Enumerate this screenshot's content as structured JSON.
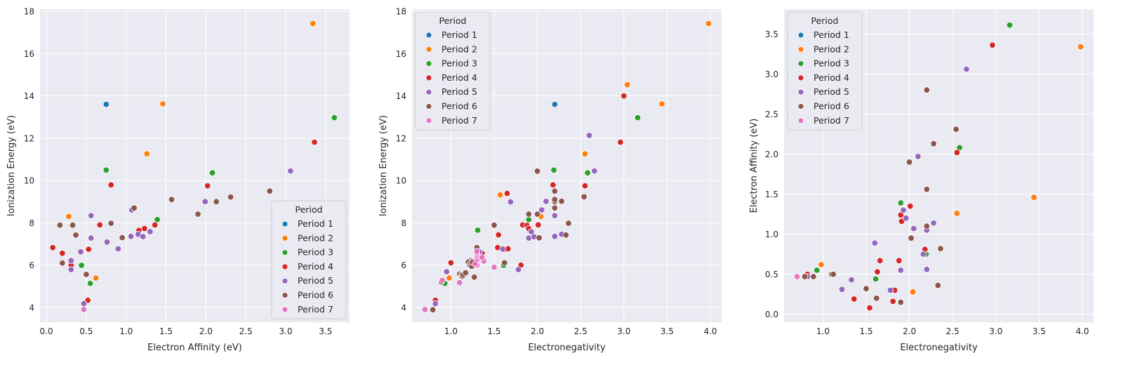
{
  "palette": {
    "Period 1": "#1f77b4",
    "Period 2": "#ff7f0e",
    "Period 3": "#2ca02c",
    "Period 4": "#d62728",
    "Period 5": "#9467bd",
    "Period 6": "#8c564b",
    "Period 7": "#e377c2",
    "plot_background": "#eaeaf2",
    "grid": "#ffffff"
  },
  "chart_data": [
    {
      "type": "scatter",
      "title": "",
      "xlabel": "Electron Affinity (eV)",
      "ylabel": "Ionization Energy (eV)",
      "xlim": [
        -0.08,
        3.8
      ],
      "ylim": [
        3.3,
        18.1
      ],
      "xticks": [
        0.0,
        0.5,
        1.0,
        1.5,
        2.0,
        2.5,
        3.0,
        3.5
      ],
      "xtick_labels": [
        "0.0",
        "0.5",
        "1.0",
        "1.5",
        "2.0",
        "2.5",
        "3.0",
        "3.5"
      ],
      "yticks": [
        4,
        6,
        8,
        10,
        12,
        14,
        16,
        18
      ],
      "ytick_labels": [
        "4",
        "6",
        "8",
        "10",
        "12",
        "14",
        "16",
        "18"
      ],
      "grid": true,
      "legend": {
        "title": "Period",
        "position": "lower-right",
        "entries": [
          "Period 1",
          "Period 2",
          "Period 3",
          "Period 4",
          "Period 5",
          "Period 6",
          "Period 7"
        ]
      },
      "series": [
        {
          "name": "Period 1",
          "points": [
            [
              0.75,
              13.6
            ]
          ]
        },
        {
          "name": "Period 2",
          "points": [
            [
              0.28,
              8.3
            ],
            [
              0.62,
              5.39
            ],
            [
              1.26,
              11.26
            ],
            [
              1.46,
              13.62
            ],
            [
              3.34,
              17.42
            ]
          ]
        },
        {
          "name": "Period 3",
          "points": [
            [
              0.44,
              5.99
            ],
            [
              0.55,
              5.14
            ],
            [
              0.75,
              10.49
            ],
            [
              1.39,
              8.15
            ],
            [
              2.08,
              10.36
            ],
            [
              3.61,
              12.97
            ]
          ]
        },
        {
          "name": "Period 4",
          "points": [
            [
              0.08,
              6.83
            ],
            [
              0.2,
              6.56
            ],
            [
              0.31,
              6.0
            ],
            [
              0.52,
              4.34
            ],
            [
              0.53,
              6.75
            ],
            [
              0.67,
              7.9
            ],
            [
              0.81,
              9.79
            ],
            [
              1.16,
              7.64
            ],
            [
              1.23,
              7.73
            ],
            [
              1.36,
              7.9
            ],
            [
              2.02,
              9.75
            ],
            [
              3.36,
              11.81
            ]
          ]
        },
        {
          "name": "Period 5",
          "points": [
            [
              0.31,
              5.79
            ],
            [
              0.31,
              6.21
            ],
            [
              0.43,
              6.63
            ],
            [
              0.56,
              7.28
            ],
            [
              0.56,
              8.34
            ],
            [
              0.76,
              7.09
            ],
            [
              0.9,
              6.77
            ],
            [
              1.06,
              7.36
            ],
            [
              1.07,
              8.61
            ],
            [
              1.15,
              7.46
            ],
            [
              1.21,
              7.35
            ],
            [
              1.3,
              7.58
            ],
            [
              1.99,
              9.0
            ],
            [
              3.06,
              10.45
            ],
            [
              0.47,
              4.18
            ]
          ]
        },
        {
          "name": "Period 6",
          "points": [
            [
              0.17,
              7.89
            ],
            [
              0.2,
              6.1
            ],
            [
              0.33,
              7.89
            ],
            [
              0.37,
              7.42
            ],
            [
              0.5,
              5.56
            ],
            [
              0.81,
              7.98
            ],
            [
              0.95,
              7.3
            ],
            [
              1.1,
              8.7
            ],
            [
              1.57,
              9.1
            ],
            [
              1.9,
              8.41
            ],
            [
              2.13,
              9.0
            ],
            [
              2.31,
              9.22
            ],
            [
              2.8,
              9.5
            ],
            [
              0.47,
              3.9
            ]
          ]
        },
        {
          "name": "Period 7",
          "points": [
            [
              0.47,
              3.9
            ]
          ]
        }
      ]
    },
    {
      "type": "scatter",
      "title": "",
      "xlabel": "Electronegativity",
      "ylabel": "Ionization Energy (eV)",
      "xlim": [
        0.55,
        4.13
      ],
      "ylim": [
        3.3,
        18.1
      ],
      "xticks": [
        1.0,
        1.5,
        2.0,
        2.5,
        3.0,
        3.5,
        4.0
      ],
      "xtick_labels": [
        "1.0",
        "1.5",
        "2.0",
        "2.5",
        "3.0",
        "3.5",
        "4.0"
      ],
      "yticks": [
        4,
        6,
        8,
        10,
        12,
        14,
        16,
        18
      ],
      "ytick_labels": [
        "4",
        "6",
        "8",
        "10",
        "12",
        "14",
        "16",
        "18"
      ],
      "grid": true,
      "legend": {
        "title": "Period",
        "position": "upper-left",
        "entries": [
          "Period 1",
          "Period 2",
          "Period 3",
          "Period 4",
          "Period 5",
          "Period 6",
          "Period 7"
        ]
      },
      "series": [
        {
          "name": "Period 1",
          "points": [
            [
              2.2,
              13.6
            ]
          ]
        },
        {
          "name": "Period 2",
          "points": [
            [
              0.98,
              5.39
            ],
            [
              1.57,
              9.32
            ],
            [
              2.04,
              8.3
            ],
            [
              2.55,
              11.26
            ],
            [
              3.04,
              14.53
            ],
            [
              3.44,
              13.62
            ],
            [
              3.98,
              17.42
            ]
          ]
        },
        {
          "name": "Period 3",
          "points": [
            [
              0.93,
              5.14
            ],
            [
              1.31,
              7.65
            ],
            [
              1.61,
              5.99
            ],
            [
              1.9,
              8.15
            ],
            [
              2.19,
              10.49
            ],
            [
              2.58,
              10.36
            ],
            [
              3.16,
              12.97
            ]
          ]
        },
        {
          "name": "Period 4",
          "points": [
            [
              0.82,
              4.34
            ],
            [
              1.0,
              6.11
            ],
            [
              1.36,
              6.56
            ],
            [
              1.54,
              6.83
            ],
            [
              1.63,
              6.75
            ],
            [
              1.66,
              6.77
            ],
            [
              1.55,
              7.43
            ],
            [
              1.83,
              7.9
            ],
            [
              1.88,
              7.88
            ],
            [
              1.91,
              7.64
            ],
            [
              1.9,
              7.73
            ],
            [
              1.65,
              9.39
            ],
            [
              1.81,
              6.0
            ],
            [
              2.01,
              7.9
            ],
            [
              2.18,
              9.79
            ],
            [
              2.55,
              9.75
            ],
            [
              2.96,
              11.81
            ],
            [
              3.0,
              14.0
            ]
          ]
        },
        {
          "name": "Period 5",
          "points": [
            [
              0.82,
              4.18
            ],
            [
              0.95,
              5.69
            ],
            [
              1.22,
              6.21
            ],
            [
              1.33,
              6.63
            ],
            [
              1.6,
              6.76
            ],
            [
              1.9,
              7.28
            ],
            [
              2.2,
              7.36
            ],
            [
              2.28,
              7.46
            ],
            [
              2.2,
              8.34
            ],
            [
              1.93,
              7.58
            ],
            [
              1.69,
              8.99
            ],
            [
              1.78,
              5.79
            ],
            [
              1.96,
              7.34
            ],
            [
              2.05,
              8.61
            ],
            [
              2.1,
              9.01
            ],
            [
              2.66,
              10.45
            ],
            [
              2.6,
              12.13
            ]
          ]
        },
        {
          "name": "Period 6",
          "points": [
            [
              0.79,
              3.89
            ],
            [
              0.89,
              5.21
            ],
            [
              1.1,
              5.58
            ],
            [
              1.12,
              5.54
            ],
            [
              1.13,
              5.47
            ],
            [
              1.14,
              5.53
            ],
            [
              1.17,
              5.64
            ],
            [
              1.2,
              6.15
            ],
            [
              1.22,
              6.0
            ],
            [
              1.23,
              6.11
            ],
            [
              1.24,
              5.94
            ],
            [
              1.25,
              6.14
            ],
            [
              1.27,
              5.43
            ],
            [
              1.3,
              6.83
            ],
            [
              1.5,
              7.89
            ],
            [
              2.36,
              7.98
            ],
            [
              1.9,
              8.41
            ],
            [
              2.2,
              9.0
            ],
            [
              2.2,
              8.7
            ],
            [
              2.28,
              9.02
            ],
            [
              2.54,
              9.23
            ],
            [
              2.0,
              10.44
            ],
            [
              1.62,
              6.11
            ],
            [
              2.33,
              7.42
            ],
            [
              2.02,
              7.29
            ],
            [
              2.0,
              8.41
            ],
            [
              2.2,
              9.1
            ],
            [
              2.2,
              9.5
            ]
          ]
        },
        {
          "name": "Period 7",
          "points": [
            [
              0.7,
              3.9
            ],
            [
              0.9,
              5.28
            ],
            [
              1.1,
              5.17
            ],
            [
              1.3,
              6.31
            ],
            [
              1.3,
              6.1
            ],
            [
              1.3,
              6.19
            ],
            [
              1.3,
              6.27
            ],
            [
              1.3,
              6.42
            ],
            [
              1.3,
              6.5
            ],
            [
              1.3,
              6.58
            ],
            [
              1.3,
              6.65
            ],
            [
              1.3,
              6.0
            ],
            [
              1.38,
              6.19
            ],
            [
              1.36,
              6.36
            ],
            [
              1.28,
              6.06
            ],
            [
              1.5,
              5.9
            ]
          ]
        }
      ]
    },
    {
      "type": "scatter",
      "title": "",
      "xlabel": "Electronegativity",
      "ylabel": "Electron Affinity (eV)",
      "xlim": [
        0.55,
        4.13
      ],
      "ylim": [
        -0.1,
        3.81
      ],
      "xticks": [
        1.0,
        1.5,
        2.0,
        2.5,
        3.0,
        3.5,
        4.0
      ],
      "xtick_labels": [
        "1.0",
        "1.5",
        "2.0",
        "2.5",
        "3.0",
        "3.5",
        "4.0"
      ],
      "yticks": [
        0.0,
        0.5,
        1.0,
        1.5,
        2.0,
        2.5,
        3.0,
        3.5
      ],
      "ytick_labels": [
        "0.0",
        "0.5",
        "1.0",
        "1.5",
        "2.0",
        "2.5",
        "3.0",
        "3.5"
      ],
      "grid": true,
      "legend": {
        "title": "Period",
        "position": "upper-left",
        "entries": [
          "Period 1",
          "Period 2",
          "Period 3",
          "Period 4",
          "Period 5",
          "Period 6",
          "Period 7"
        ]
      },
      "series": [
        {
          "name": "Period 1",
          "points": [
            [
              2.2,
              0.75
            ]
          ]
        },
        {
          "name": "Period 2",
          "points": [
            [
              0.98,
              0.62
            ],
            [
              2.04,
              0.28
            ],
            [
              2.55,
              1.26
            ],
            [
              3.44,
              1.46
            ],
            [
              3.98,
              3.34
            ]
          ]
        },
        {
          "name": "Period 3",
          "points": [
            [
              0.93,
              0.55
            ],
            [
              1.61,
              0.44
            ],
            [
              1.9,
              1.39
            ],
            [
              2.19,
              0.75
            ],
            [
              2.58,
              2.08
            ],
            [
              3.16,
              3.61
            ]
          ]
        },
        {
          "name": "Period 4",
          "points": [
            [
              0.82,
              0.5
            ],
            [
              1.36,
              0.19
            ],
            [
              1.54,
              0.08
            ],
            [
              1.63,
              0.53
            ],
            [
              1.66,
              0.67
            ],
            [
              1.83,
              0.3
            ],
            [
              1.88,
              0.67
            ],
            [
              1.91,
              1.16
            ],
            [
              1.9,
              1.24
            ],
            [
              1.81,
              0.16
            ],
            [
              2.01,
              1.35
            ],
            [
              2.18,
              0.81
            ],
            [
              2.55,
              2.02
            ],
            [
              2.96,
              3.36
            ]
          ]
        },
        {
          "name": "Period 5",
          "points": [
            [
              0.82,
              0.47
            ],
            [
              1.22,
              0.31
            ],
            [
              1.33,
              0.43
            ],
            [
              1.6,
              0.89
            ],
            [
              1.93,
              1.3
            ],
            [
              1.96,
              1.2
            ],
            [
              1.78,
              0.3
            ],
            [
              1.9,
              0.55
            ],
            [
              2.05,
              1.07
            ],
            [
              2.1,
              1.97
            ],
            [
              2.2,
              1.05
            ],
            [
              2.28,
              1.14
            ],
            [
              2.2,
              0.56
            ],
            [
              2.16,
              0.75
            ],
            [
              2.66,
              3.06
            ]
          ]
        },
        {
          "name": "Period 6",
          "points": [
            [
              0.79,
              0.47
            ],
            [
              0.89,
              0.47
            ],
            [
              1.1,
              0.5
            ],
            [
              1.12,
              0.5
            ],
            [
              1.5,
              0.32
            ],
            [
              1.62,
              0.2
            ],
            [
              1.9,
              0.15
            ],
            [
              2.0,
              1.9
            ],
            [
              2.02,
              0.95
            ],
            [
              2.2,
              1.1
            ],
            [
              2.2,
              1.56
            ],
            [
              2.2,
              2.8
            ],
            [
              2.28,
              2.13
            ],
            [
              2.33,
              0.36
            ],
            [
              2.36,
              0.82
            ],
            [
              2.54,
              2.31
            ]
          ]
        },
        {
          "name": "Period 7",
          "points": [
            [
              0.7,
              0.47
            ]
          ]
        }
      ]
    }
  ]
}
